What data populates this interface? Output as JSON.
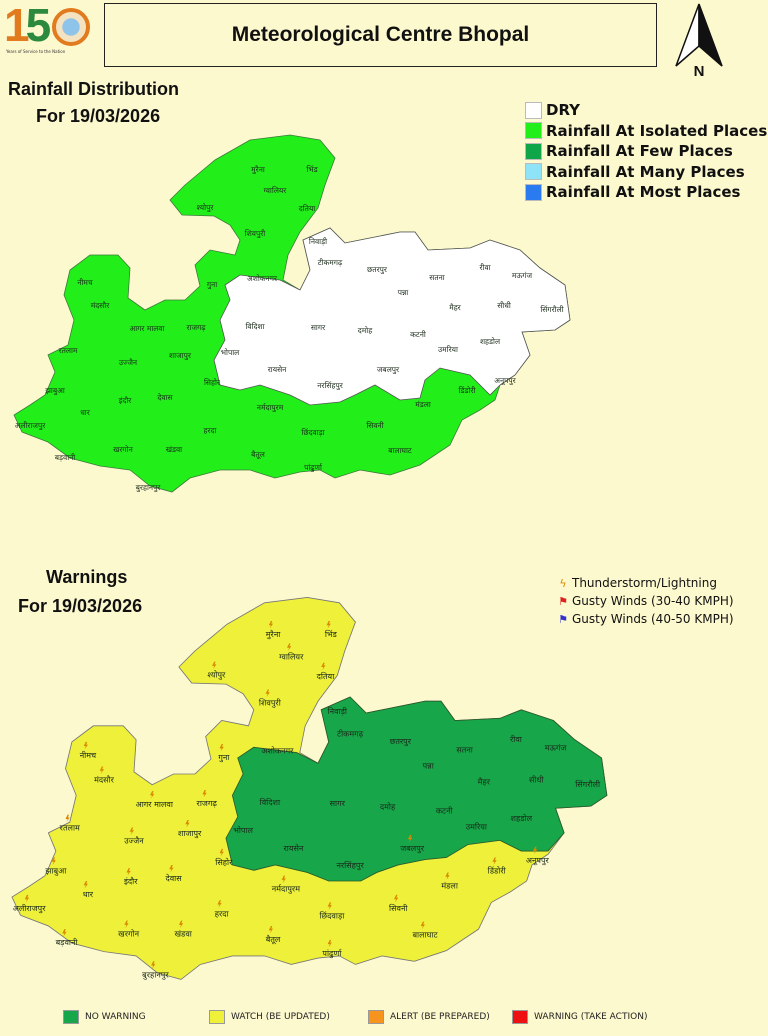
{
  "logo": {
    "number": "150",
    "tagline": "Years of Service to the Nation"
  },
  "header": {
    "title": "Meteorological Centre Bhopal",
    "north_label": "N"
  },
  "rainfall": {
    "title": "Rainfall Distribution",
    "date_line": "For 19/03/2026",
    "legend": [
      {
        "label": "DRY",
        "color": "#ffffff"
      },
      {
        "label": "Rainfall At Isolated Places",
        "color": "#22ee1a"
      },
      {
        "label": "Rainfall At Few Places",
        "color": "#0fa64a"
      },
      {
        "label": "Rainfall At Many Places",
        "color": "#8fe3f7"
      },
      {
        "label": "Rainfall At Most Places",
        "color": "#2a7bf0"
      }
    ]
  },
  "warnings": {
    "title": "Warnings",
    "date_line": "For 19/03/2026",
    "legend": [
      {
        "label": "Thunderstorm/Lightning",
        "icon": "lightning-icon"
      },
      {
        "label": "Gusty Winds (30-40 KMPH)",
        "icon": "windsock-red-icon"
      },
      {
        "label": "Gusty Winds (40-50 KMPH)",
        "icon": "windsock-blue-icon"
      }
    ],
    "levels": [
      {
        "label": "NO WARNING",
        "color": "#17a64a"
      },
      {
        "label": "WATCH (BE UPDATED)",
        "color": "#eef03a"
      },
      {
        "label": "ALERT (BE PREPARED)",
        "color": "#f7941d"
      },
      {
        "label": "WARNING (TAKE ACTION)",
        "color": "#ee1111"
      }
    ]
  },
  "districts": [
    "मुरैना",
    "भिंड",
    "ग्वालियर",
    "दतिया",
    "श्योपुर",
    "शिवपुरी",
    "निवाड़ी",
    "टीकमगढ़",
    "छतरपुर",
    "पन्ना",
    "सतना",
    "रीवा",
    "मऊगंज",
    "सीधी",
    "सिंगरौली",
    "मैहर",
    "गुना",
    "अशोकनगर",
    "नीमच",
    "मंदसौर",
    "आगर मालवा",
    "राजगढ़",
    "विदिशा",
    "सागर",
    "दमोह",
    "कटनी",
    "उमरिया",
    "शहडोल",
    "रतलाम",
    "उज्जैन",
    "शाजापुर",
    "भोपाल",
    "रायसेन",
    "जबलपुर",
    "अनूपपुर",
    "झाबुआ",
    "सिहोर",
    "नरसिंहपुर",
    "डिंडोरी",
    "इंदौर",
    "देवास",
    "धार",
    "नर्मदापुरम",
    "मंडला",
    "अलीराजपुर",
    "हरदा",
    "छिंदवाड़ा",
    "सिवनी",
    "खरगोन",
    "खंडवा",
    "बैतूल",
    "बालाघाट",
    "पांढुर्णा",
    "बड़वानी",
    "बुरहानपुर"
  ]
}
